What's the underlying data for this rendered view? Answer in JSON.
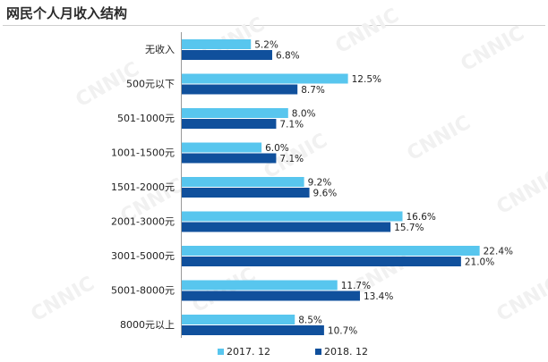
{
  "title": "网民个人月收入结构",
  "watermark": "CNNIC",
  "colors": {
    "series_2017": "#58c6ee",
    "series_2018": "#10509c",
    "axis": "#9a9a9a"
  },
  "chart_data": {
    "type": "bar",
    "orientation": "horizontal",
    "title": "网民个人月收入结构",
    "categories": [
      "无收入",
      "500元以下",
      "501-1000元",
      "1001-1500元",
      "1501-2000元",
      "2001-3000元",
      "3001-5000元",
      "5001-8000元",
      "8000元以上"
    ],
    "series": [
      {
        "name": "2017. 12",
        "values": [
          5.2,
          12.5,
          8.0,
          6.0,
          9.2,
          16.6,
          22.4,
          11.7,
          8.5
        ],
        "labels": [
          "5.2%",
          "12.5%",
          "8.0%",
          "6.0%",
          "9.2%",
          "16.6%",
          "22.4%",
          "11.7%",
          "8.5%"
        ]
      },
      {
        "name": "2018. 12",
        "values": [
          6.8,
          8.7,
          7.1,
          7.1,
          9.6,
          15.7,
          21.0,
          13.4,
          10.7
        ],
        "labels": [
          "6.8%",
          "8.7%",
          "7.1%",
          "7.1%",
          "9.6%",
          "15.7%",
          "21.0%",
          "13.4%",
          "10.7%"
        ]
      }
    ],
    "unit": "%",
    "xlim": [
      0,
      24
    ],
    "legend_position": "bottom-center",
    "grid": false
  }
}
